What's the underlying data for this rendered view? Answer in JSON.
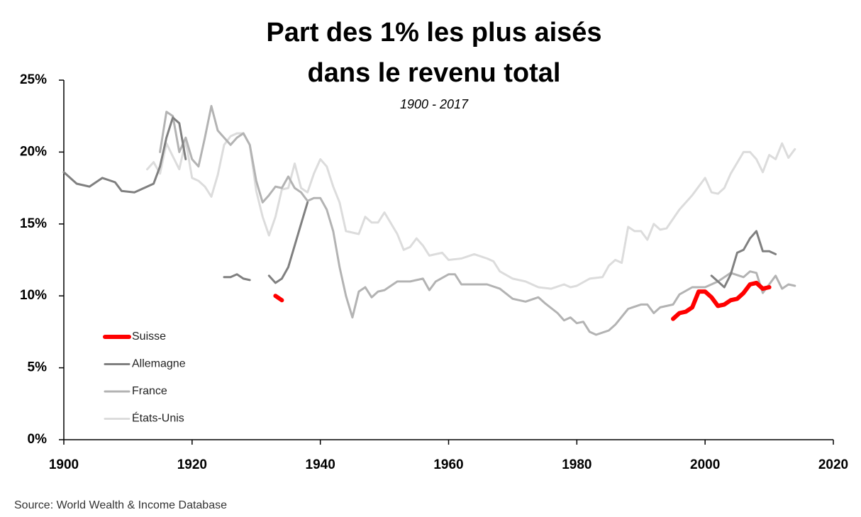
{
  "chart_data": {
    "type": "line",
    "title_lines": [
      "Part des 1% les plus aisés",
      "dans le revenu total"
    ],
    "subtitle": "1900 - 2017",
    "source": "Source: World Wealth & Income Database",
    "xlim": [
      1900,
      2020
    ],
    "xticks": [
      1900,
      1920,
      1940,
      1960,
      1980,
      2000,
      2020
    ],
    "ylim": [
      0,
      25
    ],
    "yticks": [
      {
        "value": 0,
        "label": "0%"
      },
      {
        "value": 5,
        "label": "5%"
      },
      {
        "value": 10,
        "label": "10%"
      },
      {
        "value": 15,
        "label": "15%"
      },
      {
        "value": 20,
        "label": "20%"
      },
      {
        "value": 25,
        "label": "25%"
      }
    ],
    "legend": "left",
    "series": [
      {
        "name": "Suisse",
        "color": "#ff0000",
        "width": 6,
        "x": [
          1933,
          1934,
          1950,
          1995,
          1996,
          1997,
          1998,
          1999,
          2000,
          2001,
          2002,
          2003,
          2004,
          2005,
          2006,
          2007,
          2008,
          2009,
          2010
        ],
        "values": [
          10,
          9.7,
          null,
          8.4,
          8.8,
          8.9,
          9.2,
          10.3,
          10.3,
          9.9,
          9.3,
          9.4,
          9.7,
          9.8,
          10.2,
          10.8,
          10.9,
          10.5,
          10.6
        ]
      },
      {
        "name": "Allemagne",
        "color": "#808080",
        "width": 3,
        "x": [
          1900,
          1902,
          1904,
          1906,
          1908,
          1909,
          1911,
          1913,
          1914,
          1915,
          1916,
          1917,
          1918,
          1919,
          1922,
          1925,
          1926,
          1927,
          1928,
          1929,
          1930,
          1932,
          1933,
          1934,
          1935,
          1936,
          1937,
          1938,
          1970,
          2001,
          2002,
          2003,
          2004,
          2005,
          2006,
          2007,
          2008,
          2009,
          2010,
          2011
        ],
        "values": [
          18.6,
          17.8,
          17.6,
          18.2,
          17.9,
          17.3,
          17.2,
          17.6,
          17.8,
          19,
          21,
          22.4,
          22,
          19.5,
          null,
          11.3,
          11.3,
          11.5,
          11.2,
          11.1,
          null,
          11.4,
          10.9,
          11.2,
          12,
          13.5,
          15,
          16.5,
          null,
          11.4,
          11,
          10.6,
          11.5,
          13,
          13.2,
          14,
          14.5,
          13.1,
          13.1,
          12.9
        ]
      },
      {
        "name": "France",
        "color": "#b3b3b3",
        "width": 3,
        "x": [
          1915,
          1916,
          1917,
          1918,
          1919,
          1920,
          1921,
          1922,
          1923,
          1924,
          1925,
          1926,
          1927,
          1928,
          1929,
          1930,
          1931,
          1932,
          1933,
          1934,
          1935,
          1936,
          1937,
          1938,
          1939,
          1940,
          1941,
          1942,
          1943,
          1944,
          1945,
          1946,
          1947,
          1948,
          1949,
          1950,
          1952,
          1954,
          1956,
          1957,
          1958,
          1960,
          1961,
          1962,
          1964,
          1966,
          1968,
          1970,
          1972,
          1974,
          1975,
          1977,
          1978,
          1979,
          1980,
          1981,
          1982,
          1983,
          1985,
          1986,
          1988,
          1990,
          1991,
          1992,
          1993,
          1995,
          1996,
          1998,
          2000,
          2002,
          2004,
          2006,
          2007,
          2008,
          2009,
          2010,
          2011,
          2012,
          2013,
          2014
        ],
        "values": [
          20,
          22.8,
          22.5,
          20,
          21,
          19.5,
          19,
          21,
          23.2,
          21.5,
          21,
          20.5,
          21,
          21.3,
          20.5,
          18,
          16.5,
          17,
          17.6,
          17.5,
          18.3,
          17.5,
          17.2,
          16.6,
          16.8,
          16.8,
          16,
          14.5,
          12,
          10,
          8.5,
          10.3,
          10.6,
          9.9,
          10.3,
          10.4,
          11,
          11,
          11.2,
          10.4,
          11,
          11.5,
          11.5,
          10.8,
          10.8,
          10.8,
          10.5,
          9.8,
          9.6,
          9.9,
          9.5,
          8.8,
          8.3,
          8.5,
          8.1,
          8.2,
          7.5,
          7.3,
          7.6,
          8,
          9.1,
          9.4,
          9.4,
          8.8,
          9.2,
          9.4,
          10.1,
          10.6,
          10.6,
          11,
          11.6,
          11.3,
          11.7,
          11.6,
          10.2,
          10.8,
          11.4,
          10.5,
          10.8,
          10.7
        ]
      },
      {
        "name": "États-Unis",
        "color": "#dcdcdc",
        "width": 3,
        "x": [
          1913,
          1914,
          1915,
          1916,
          1917,
          1918,
          1919,
          1920,
          1921,
          1922,
          1923,
          1924,
          1925,
          1926,
          1927,
          1928,
          1929,
          1930,
          1931,
          1932,
          1933,
          1934,
          1935,
          1936,
          1937,
          1938,
          1939,
          1940,
          1941,
          1942,
          1943,
          1944,
          1946,
          1947,
          1948,
          1949,
          1950,
          1952,
          1953,
          1954,
          1955,
          1956,
          1957,
          1958,
          1959,
          1960,
          1962,
          1964,
          1966,
          1967,
          1968,
          1970,
          1972,
          1974,
          1976,
          1978,
          1979,
          1980,
          1982,
          1984,
          1985,
          1986,
          1987,
          1988,
          1989,
          1990,
          1991,
          1992,
          1993,
          1994,
          1996,
          1998,
          2000,
          2001,
          2002,
          2003,
          2004,
          2006,
          2007,
          2008,
          2009,
          2010,
          2011,
          2012,
          2013,
          2014
        ],
        "values": [
          18.8,
          19.3,
          18.5,
          20.6,
          19.7,
          18.8,
          20.8,
          18.2,
          18,
          17.6,
          16.9,
          18.4,
          20.5,
          21.1,
          21.3,
          21.3,
          20.5,
          17.3,
          15.5,
          14.2,
          15.5,
          17.4,
          17.5,
          19.2,
          17.5,
          17.2,
          18.5,
          19.5,
          19,
          17.6,
          16.5,
          14.5,
          14.3,
          15.5,
          15.1,
          15.1,
          15.8,
          14.3,
          13.2,
          13.4,
          14,
          13.5,
          12.8,
          12.9,
          13,
          12.5,
          12.6,
          12.9,
          12.6,
          12.4,
          11.7,
          11.2,
          11,
          10.6,
          10.5,
          10.8,
          10.6,
          10.7,
          11.2,
          11.3,
          12.1,
          12.5,
          12.3,
          14.8,
          14.5,
          14.5,
          13.9,
          15,
          14.6,
          14.7,
          16,
          17,
          18.2,
          17.2,
          17.1,
          17.5,
          18.5,
          20,
          20,
          19.5,
          18.6,
          19.8,
          19.5,
          20.6,
          19.6,
          20.2
        ]
      }
    ]
  }
}
